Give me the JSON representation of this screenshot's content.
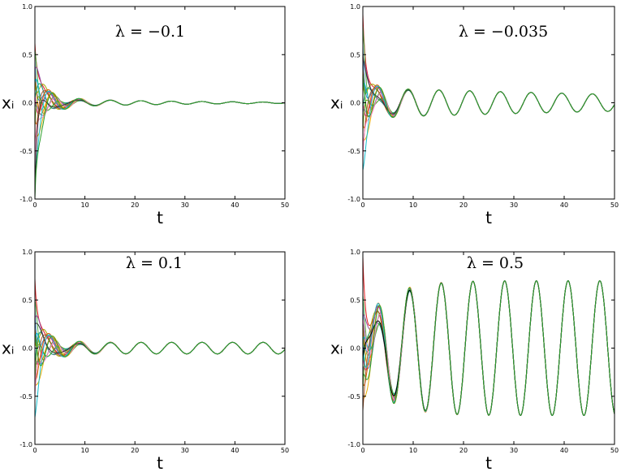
{
  "chart_data": [
    {
      "type": "line",
      "title": "λ = −0.1",
      "lambda": -0.1,
      "xlabel": "t",
      "ylabel": "xᵢ",
      "xlim": [
        0,
        50
      ],
      "ylim": [
        -1.0,
        1.0
      ],
      "xticks": [
        "0",
        "10",
        "20",
        "30",
        "40",
        "50"
      ],
      "yticks": [
        "1.0",
        "0.5",
        "0.0",
        "-0.5",
        "-1.0"
      ],
      "grid": false,
      "legend": "none",
      "sync_amplitude": 0.05,
      "period": 6.1,
      "sync_decay": 0.04,
      "transient_time": 8,
      "initial_values": [
        0.62,
        0.55,
        0.45,
        0.35,
        0.3,
        0.25,
        0.2,
        0.1,
        0.05,
        -0.05,
        -0.15,
        -0.25,
        -0.35,
        -0.45,
        -0.6,
        -0.75,
        -0.95,
        -1.0
      ],
      "colors": [
        "#e41a1c",
        "#4daf4a",
        "#377eb8",
        "#984ea3",
        "#ff7f00",
        "#a6a600",
        "#00bcd4",
        "#e7298a",
        "#1b9e77",
        "#7570b3",
        "#d95f02",
        "#66a61e",
        "#e6ab02",
        "#a65628",
        "#f781bf",
        "#17becf",
        "#333333",
        "#2ca02c"
      ]
    },
    {
      "type": "line",
      "title": "λ = −0.035",
      "lambda": -0.035,
      "xlabel": "t",
      "ylabel": "xᵢ",
      "xlim": [
        0,
        50
      ],
      "ylim": [
        -1.0,
        1.0
      ],
      "xticks": [
        "0",
        "10",
        "20",
        "30",
        "40",
        "50"
      ],
      "yticks": [
        "1.0",
        "0.5",
        "0.0",
        "-0.5",
        "-1.0"
      ],
      "grid": false,
      "legend": "none",
      "sync_amplitude": 0.16,
      "period": 6.1,
      "sync_decay": 0.012,
      "transient_time": 7,
      "initial_values": [
        0.92,
        0.8,
        0.6,
        0.45,
        0.35,
        0.25,
        0.15,
        0.05,
        -0.05,
        -0.1,
        -0.2,
        -0.3,
        -0.4,
        -0.5,
        -0.6,
        -0.7,
        0.5,
        0.3
      ],
      "colors": [
        "#e41a1c",
        "#4daf4a",
        "#377eb8",
        "#984ea3",
        "#ff7f00",
        "#a6a600",
        "#00bcd4",
        "#e7298a",
        "#1b9e77",
        "#7570b3",
        "#d95f02",
        "#66a61e",
        "#e6ab02",
        "#a65628",
        "#f781bf",
        "#17becf",
        "#333333",
        "#2ca02c"
      ]
    },
    {
      "type": "line",
      "title": "λ = 0.1",
      "lambda": 0.1,
      "xlabel": "t",
      "ylabel": "xᵢ",
      "xlim": [
        0,
        50
      ],
      "ylim": [
        -1.0,
        1.0
      ],
      "xticks": [
        "0",
        "10",
        "20",
        "30",
        "40",
        "50"
      ],
      "yticks": [
        "1.0",
        "0.5",
        "0.0",
        "-0.5",
        "-1.0"
      ],
      "grid": false,
      "legend": "none",
      "sync_amplitude": 0.06,
      "period": 6.1,
      "sync_decay": 0.0,
      "transient_time": 9,
      "initial_values": [
        0.72,
        0.5,
        0.4,
        0.3,
        0.2,
        0.1,
        0.05,
        -0.05,
        -0.15,
        -0.25,
        -0.3,
        -0.35,
        -0.4,
        -0.45,
        -0.5,
        -0.72,
        0.25,
        0.15
      ],
      "colors": [
        "#e41a1c",
        "#4daf4a",
        "#377eb8",
        "#984ea3",
        "#ff7f00",
        "#a6a600",
        "#00bcd4",
        "#e7298a",
        "#1b9e77",
        "#7570b3",
        "#d95f02",
        "#66a61e",
        "#e6ab02",
        "#a65628",
        "#f781bf",
        "#17becf",
        "#333333",
        "#2ca02c"
      ]
    },
    {
      "type": "line",
      "title": "λ = 0.5",
      "lambda": 0.5,
      "xlabel": "t",
      "ylabel": "xᵢ",
      "xlim": [
        0,
        50
      ],
      "ylim": [
        -1.0,
        1.0
      ],
      "xticks": [
        "0",
        "10",
        "20",
        "30",
        "40",
        "50"
      ],
      "yticks": [
        "1.0",
        "0.5",
        "0.0",
        "-0.5",
        "-1.0"
      ],
      "grid": false,
      "legend": "none",
      "sync_amplitude": 0.7,
      "period": 6.3,
      "sync_decay": 0.0,
      "transient_time": 10,
      "initial_values": [
        0.95,
        0.55,
        0.45,
        0.35,
        0.25,
        0.15,
        0.05,
        -0.05,
        -0.15,
        -0.25,
        -0.35,
        -0.45,
        -0.55,
        -0.65,
        0.3,
        0.1,
        -0.1,
        -0.3
      ],
      "colors": [
        "#e41a1c",
        "#4daf4a",
        "#377eb8",
        "#984ea3",
        "#ff7f00",
        "#a6a600",
        "#00bcd4",
        "#e7298a",
        "#1b9e77",
        "#7570b3",
        "#d95f02",
        "#66a61e",
        "#e6ab02",
        "#a65628",
        "#f781bf",
        "#17becf",
        "#000000",
        "#2ca02c"
      ]
    }
  ]
}
